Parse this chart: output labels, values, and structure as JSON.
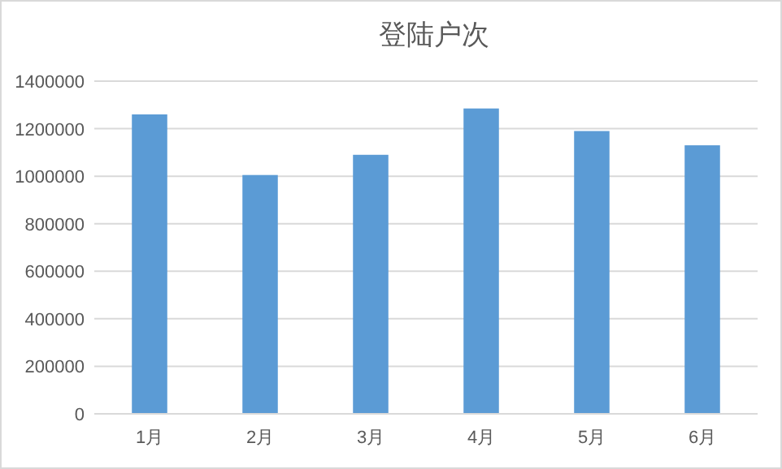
{
  "chart_data": {
    "type": "bar",
    "title": "登陆户次",
    "categories": [
      "1月",
      "2月",
      "3月",
      "4月",
      "5月",
      "6月"
    ],
    "values": [
      1260000,
      1005000,
      1090000,
      1285000,
      1190000,
      1130000
    ],
    "color": "#5b9bd5",
    "ylim": [
      0,
      1400000
    ],
    "yticks": [
      0,
      200000,
      400000,
      600000,
      800000,
      1000000,
      1200000,
      1400000
    ],
    "grid": "y"
  }
}
